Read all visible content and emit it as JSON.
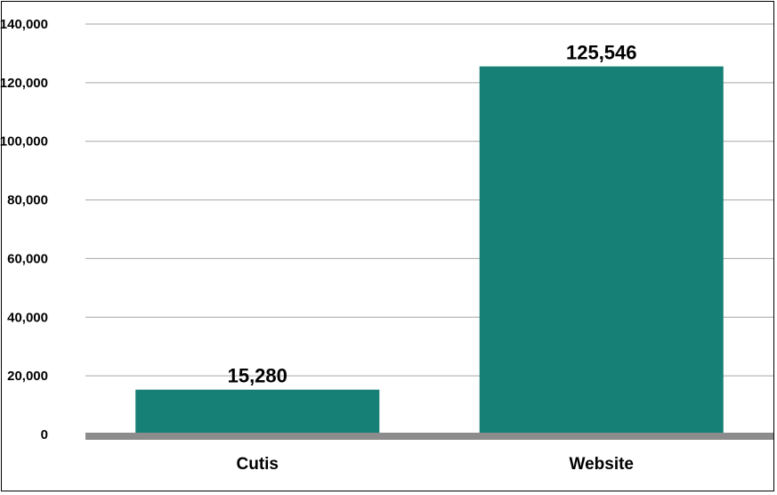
{
  "chart_data": {
    "type": "bar",
    "categories": [
      "Cutis",
      "Website"
    ],
    "values": [
      15280,
      125546
    ],
    "data_labels": [
      "15,280",
      "125,546"
    ],
    "title": "",
    "xlabel": "",
    "ylabel": "",
    "ylim": [
      0,
      140000
    ],
    "yticks": [
      0,
      20000,
      40000,
      60000,
      80000,
      100000,
      120000,
      140000
    ],
    "ytick_labels": [
      "0",
      "20,000",
      "40,000",
      "60,000",
      "80,000",
      "100,000",
      "120,000",
      "140,000"
    ],
    "grid": true,
    "legend": "none",
    "colors": {
      "bar": "#167f76",
      "gridline": "#a6a6a6",
      "baseline": "#8c8c8c",
      "frame": "#000000"
    }
  }
}
